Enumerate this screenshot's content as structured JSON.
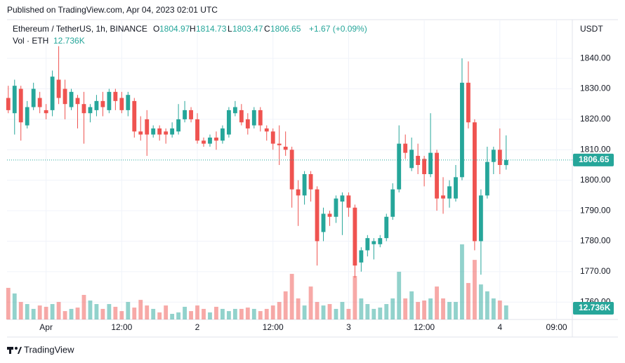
{
  "header": "Published on TradingView.com, Apr 04, 2023 02:01 UTC",
  "footer_brand": "TradingView",
  "chart_data": {
    "type": "candlestick",
    "title": "Ethereum / TetherUS, 1h, BINANCE",
    "ohlc_letters": [
      "O",
      "H",
      "L",
      "C"
    ],
    "change": "+1.67 (+0.09%)",
    "currency": "USDT",
    "up_color": "#26a69a",
    "down_color": "#ef5350",
    "open": [
      1827,
      1822,
      1830,
      1818,
      1824,
      1827,
      1823,
      1823,
      1833,
      1830,
      1824,
      1827,
      1825,
      1822,
      1823,
      1826,
      1823,
      1829,
      1827,
      1823,
      1826,
      1816,
      1820,
      1815,
      1817,
      1816,
      1815,
      1816,
      1820,
      1823,
      1820,
      1813,
      1812,
      1814,
      1813,
      1815,
      1822,
      1823,
      1820,
      1818,
      1823,
      1817,
      1816,
      1812,
      1811,
      1810,
      1797,
      1795,
      1802,
      1797,
      1783,
      1789,
      1788,
      1793,
      1795,
      1791,
      1773,
      1777,
      1779,
      1779,
      1781,
      1788,
      1797,
      1812,
      1804,
      1808,
      1807,
      1802,
      1809,
      1795,
      1794,
      1794,
      1801,
      1832,
      1819,
      1780,
      1795,
      1806,
      1810,
      1804.97
    ],
    "high": [
      1831,
      1833,
      1831,
      1826,
      1832,
      1829,
      1825,
      1836,
      1844,
      1833,
      1830,
      1828,
      1829,
      1825,
      1828,
      1829,
      1830,
      1830,
      1829,
      1829,
      1827,
      1821,
      1823,
      1818,
      1818,
      1817,
      1819,
      1825,
      1826,
      1824,
      1822,
      1814,
      1815,
      1816,
      1818,
      1824,
      1826,
      1825,
      1822,
      1824,
      1824,
      1818,
      1817,
      1818,
      1816,
      1811,
      1800,
      1803,
      1803,
      1798,
      1791,
      1790,
      1795,
      1796,
      1796,
      1792,
      1778,
      1782,
      1781,
      1782,
      1789,
      1799,
      1818,
      1815,
      1814,
      1812,
      1808,
      1822,
      1810,
      1801,
      1800,
      1805,
      1840,
      1839,
      1820,
      1797,
      1811,
      1811,
      1817,
      1814.73
    ],
    "low": [
      1822,
      1815,
      1813,
      1817,
      1823,
      1822,
      1820,
      1821,
      1825,
      1820,
      1823,
      1817,
      1812,
      1819,
      1821,
      1821,
      1822,
      1823,
      1822,
      1821,
      1814,
      1813,
      1808,
      1814,
      1813,
      1812,
      1814,
      1815,
      1819,
      1819,
      1812,
      1811,
      1811,
      1810,
      1812,
      1814,
      1821,
      1818,
      1815,
      1817,
      1816,
      1813,
      1810,
      1805,
      1808,
      1791,
      1785,
      1792,
      1793,
      1772,
      1780,
      1785,
      1786,
      1782,
      1788,
      1768,
      1770,
      1775,
      1774,
      1778,
      1780,
      1787,
      1796,
      1807,
      1803,
      1802,
      1798,
      1801,
      1790,
      1789,
      1791,
      1793,
      1800,
      1817,
      1777,
      1769,
      1794,
      1802,
      1802,
      1803.47
    ],
    "close": [
      1823,
      1831,
      1819,
      1824,
      1830,
      1824,
      1822,
      1834,
      1827,
      1825,
      1829,
      1825,
      1822,
      1824,
      1826,
      1824,
      1829,
      1826,
      1823,
      1828,
      1816,
      1815,
      1815,
      1817,
      1815,
      1815,
      1817,
      1820,
      1823,
      1820,
      1813,
      1812,
      1814,
      1813,
      1817,
      1823,
      1824,
      1819,
      1817,
      1823,
      1818,
      1816,
      1812,
      1811.5,
      1810,
      1797,
      1795,
      1802,
      1797,
      1780,
      1789,
      1788,
      1794,
      1795,
      1791,
      1772,
      1777,
      1781,
      1780,
      1781,
      1788,
      1797,
      1812,
      1809,
      1810,
      1805,
      1802,
      1809,
      1794,
      1794,
      1798,
      1801,
      1832,
      1819,
      1780,
      1795,
      1806,
      1810,
      1805,
      1806.65
    ],
    "volume": {
      "name": "Vol · ETH",
      "values": [
        28.7,
        23.6,
        15.9,
        14,
        9.6,
        12.7,
        11.5,
        14,
        15.9,
        7.6,
        9.6,
        10.8,
        22.3,
        17.2,
        14,
        9.6,
        14,
        11.5,
        7.6,
        15.9,
        10.8,
        17.8,
        12.7,
        9.6,
        6.4,
        12.7,
        5.1,
        6.4,
        11.5,
        7.6,
        12.7,
        9.6,
        6.4,
        11.5,
        9.6,
        7.6,
        9.6,
        9.6,
        10.8,
        9.6,
        7.6,
        9.6,
        12.7,
        15.9,
        25.5,
        41.4,
        19.1,
        12.7,
        29.9,
        15.9,
        12.7,
        14,
        9.6,
        15.9,
        9.6,
        39.5,
        19.1,
        14,
        9.6,
        10.8,
        14,
        19.1,
        43.3,
        19.1,
        25.5,
        15.9,
        17.2,
        19.1,
        29.9,
        19.1,
        15.9,
        15.9,
        68.2,
        33.1,
        54.1,
        31.8,
        25.5,
        19.1,
        17.2,
        12.736
      ],
      "last_label": "12.736K"
    },
    "ylim": [
      1754.3,
      1852.7
    ],
    "yticks": [
      {
        "value": 1760,
        "label": "1760.00"
      },
      {
        "value": 1770,
        "label": "1770.00"
      },
      {
        "value": 1780,
        "label": "1780.00"
      },
      {
        "value": 1790,
        "label": "1790.00"
      },
      {
        "value": 1800,
        "label": "1800.00"
      },
      {
        "value": 1810,
        "label": "1810.00"
      },
      {
        "value": 1820,
        "label": "1820.00"
      },
      {
        "value": 1830,
        "label": "1830.00"
      },
      {
        "value": 1840,
        "label": "1840.00"
      }
    ],
    "xlim": [
      -0.2,
      89.5
    ],
    "xticks": [
      {
        "value": 6,
        "label": "Apr"
      },
      {
        "value": 18,
        "label": "12:00"
      },
      {
        "value": 30,
        "label": "2"
      },
      {
        "value": 42,
        "label": "12:00"
      },
      {
        "value": 54,
        "label": "3"
      },
      {
        "value": 66,
        "label": "12:00"
      },
      {
        "value": 78,
        "label": "4"
      },
      {
        "value": 87,
        "label": "09:00"
      }
    ],
    "grid": true
  }
}
